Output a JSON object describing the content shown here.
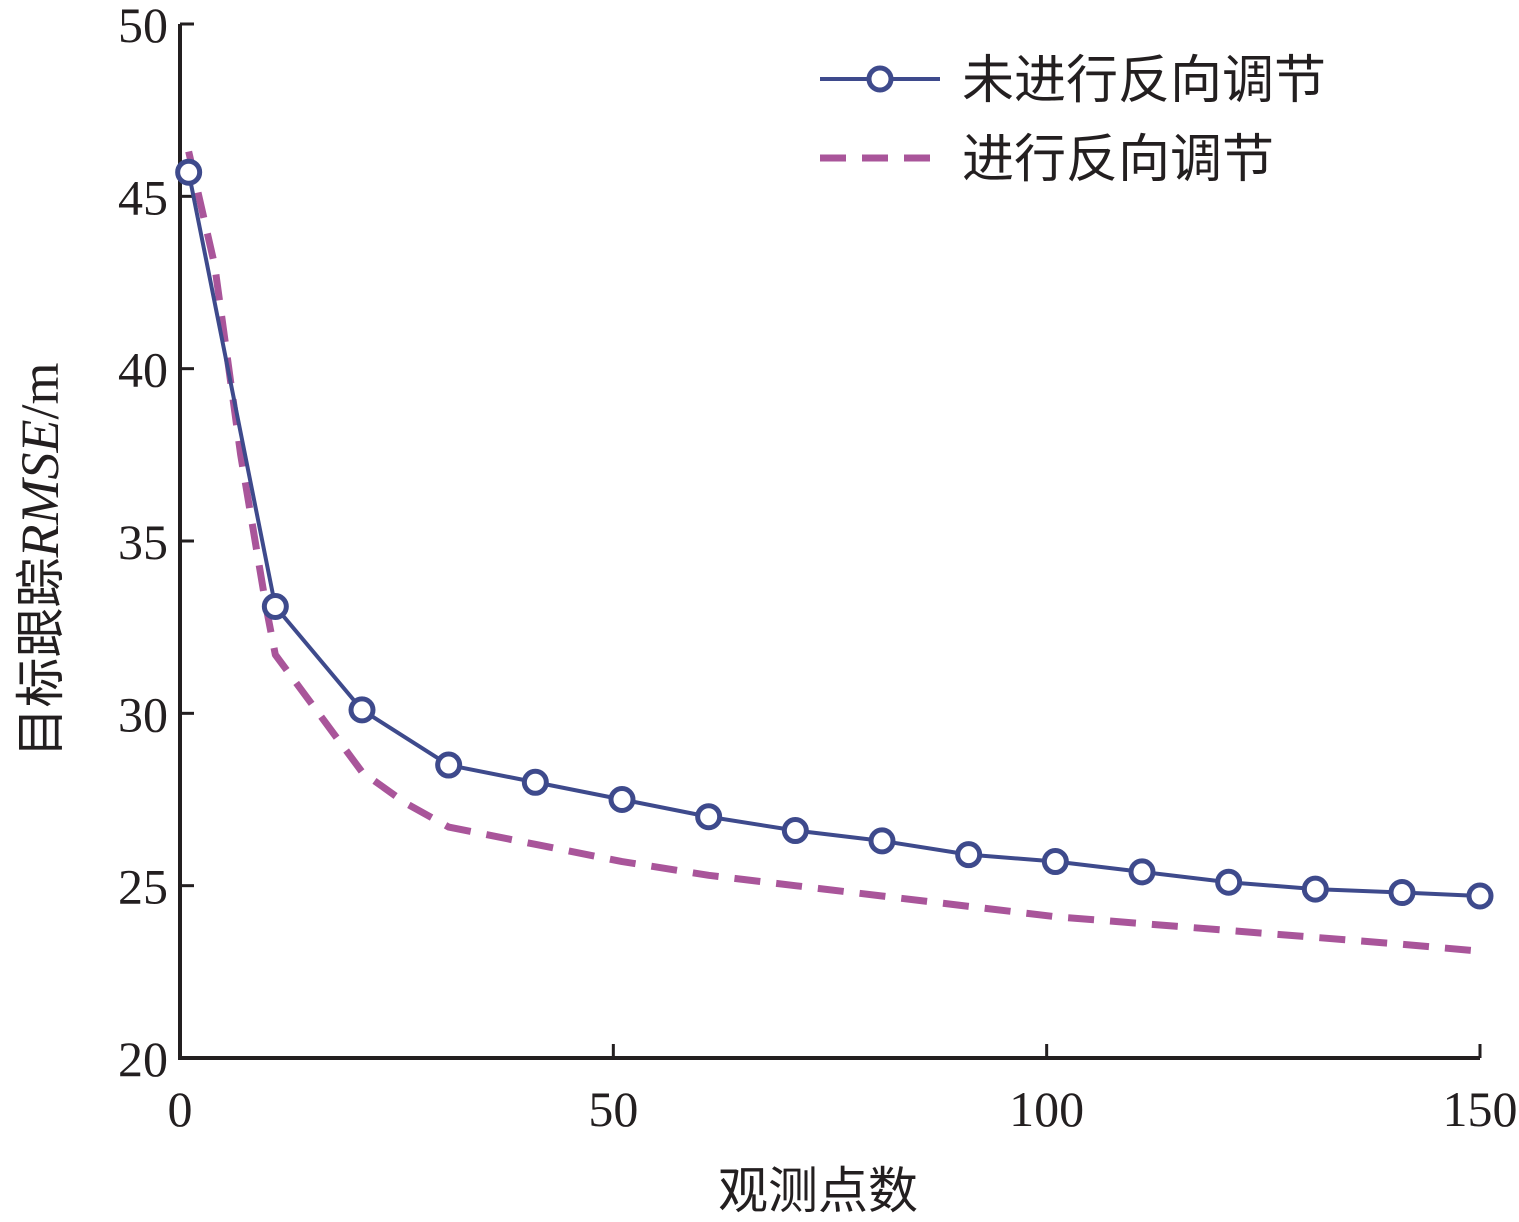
{
  "chart_data": {
    "type": "line",
    "xlabel": "观测点数",
    "ylabel": "目标跟踪",
    "ylabel_italic": "RMSE",
    "ylabel_unit": "/m",
    "xlim": [
      0,
      150
    ],
    "ylim": [
      20,
      50
    ],
    "xticks": [
      0,
      50,
      100,
      150
    ],
    "yticks": [
      20,
      25,
      30,
      35,
      40,
      45,
      50
    ],
    "grid": false,
    "legend_position": "top-right",
    "series": [
      {
        "name": "未进行反向调节",
        "color": "#3e4a8c",
        "style": "solid-circle-markers",
        "x": [
          1,
          11,
          21,
          31,
          41,
          51,
          61,
          71,
          81,
          91,
          101,
          111,
          121,
          131,
          141,
          150
        ],
        "y": [
          45.7,
          33.1,
          30.1,
          28.5,
          28.0,
          27.5,
          27.0,
          26.6,
          26.3,
          25.9,
          25.7,
          25.4,
          25.1,
          24.9,
          24.8,
          24.7
        ]
      },
      {
        "name": "进行反向调节",
        "color": "#a9559a",
        "style": "dashed",
        "x": [
          1,
          4,
          7,
          10,
          11,
          16,
          21,
          26,
          31,
          41,
          51,
          61,
          71,
          81,
          91,
          101,
          111,
          121,
          131,
          141,
          150
        ],
        "y": [
          46.3,
          43.0,
          37.5,
          33.0,
          31.7,
          30.0,
          28.3,
          27.4,
          26.7,
          26.2,
          25.7,
          25.3,
          25.0,
          24.7,
          24.4,
          24.1,
          23.9,
          23.7,
          23.5,
          23.3,
          23.1
        ]
      }
    ]
  }
}
